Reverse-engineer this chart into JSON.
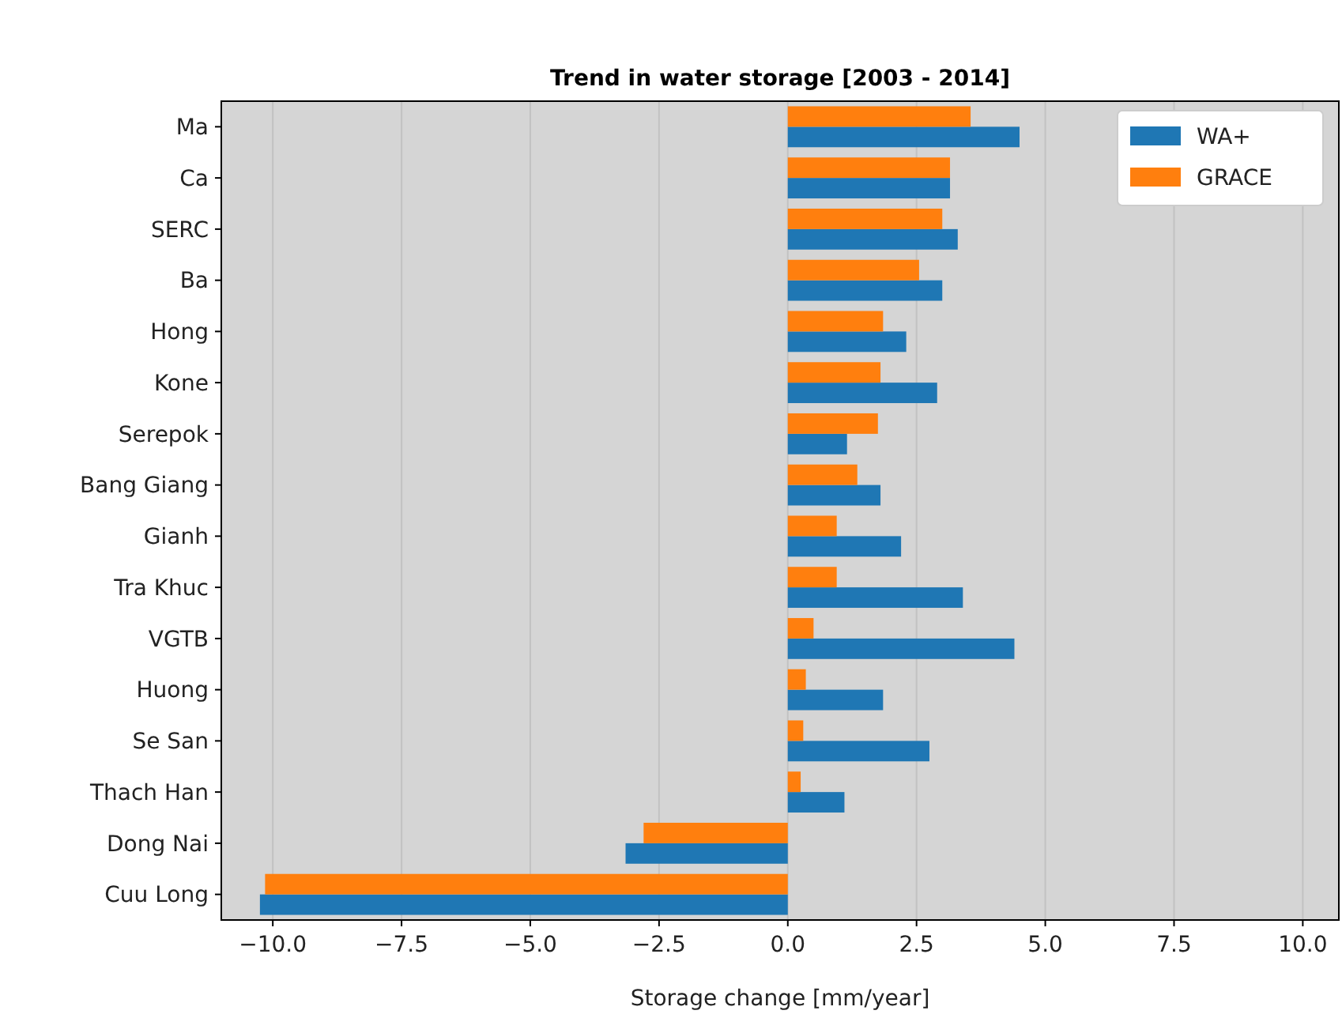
{
  "chart_data": {
    "type": "bar",
    "orientation": "horizontal",
    "title": "Trend in water storage [2003 - 2014]",
    "xlabel": "Storage change [mm/year]",
    "categories": [
      "Ma",
      "Ca",
      "SERC",
      "Ba",
      "Hong",
      "Kone",
      "Serepok",
      "Bang Giang",
      "Gianh",
      "Tra Khuc",
      "VGTB",
      "Huong",
      "Se San",
      "Thach Han",
      "Dong Nai",
      "Cuu Long"
    ],
    "series": [
      {
        "name": "WA+",
        "color": "#1f77b4",
        "values": [
          4.5,
          3.15,
          3.3,
          3.0,
          2.3,
          2.9,
          1.15,
          1.8,
          2.2,
          3.4,
          4.4,
          1.85,
          2.75,
          1.1,
          -3.15,
          -10.25
        ]
      },
      {
        "name": "GRACE",
        "color": "#ff7f0e",
        "values": [
          3.55,
          3.15,
          3.0,
          2.55,
          1.85,
          1.8,
          1.75,
          1.35,
          0.95,
          0.95,
          0.5,
          0.35,
          0.3,
          0.25,
          -2.8,
          -10.15
        ]
      }
    ],
    "xlim": [
      -11,
      10.7
    ],
    "xticks": [
      {
        "value": -10,
        "label": "−10.0"
      },
      {
        "value": -7.5,
        "label": "−7.5"
      },
      {
        "value": -5,
        "label": "−5.0"
      },
      {
        "value": -2.5,
        "label": "−2.5"
      },
      {
        "value": 0,
        "label": "0.0"
      },
      {
        "value": 2.5,
        "label": "2.5"
      },
      {
        "value": 5,
        "label": "5.0"
      },
      {
        "value": 7.5,
        "label": "7.5"
      },
      {
        "value": 10,
        "label": "10.0"
      }
    ],
    "grid": "x",
    "legend": "top right"
  }
}
